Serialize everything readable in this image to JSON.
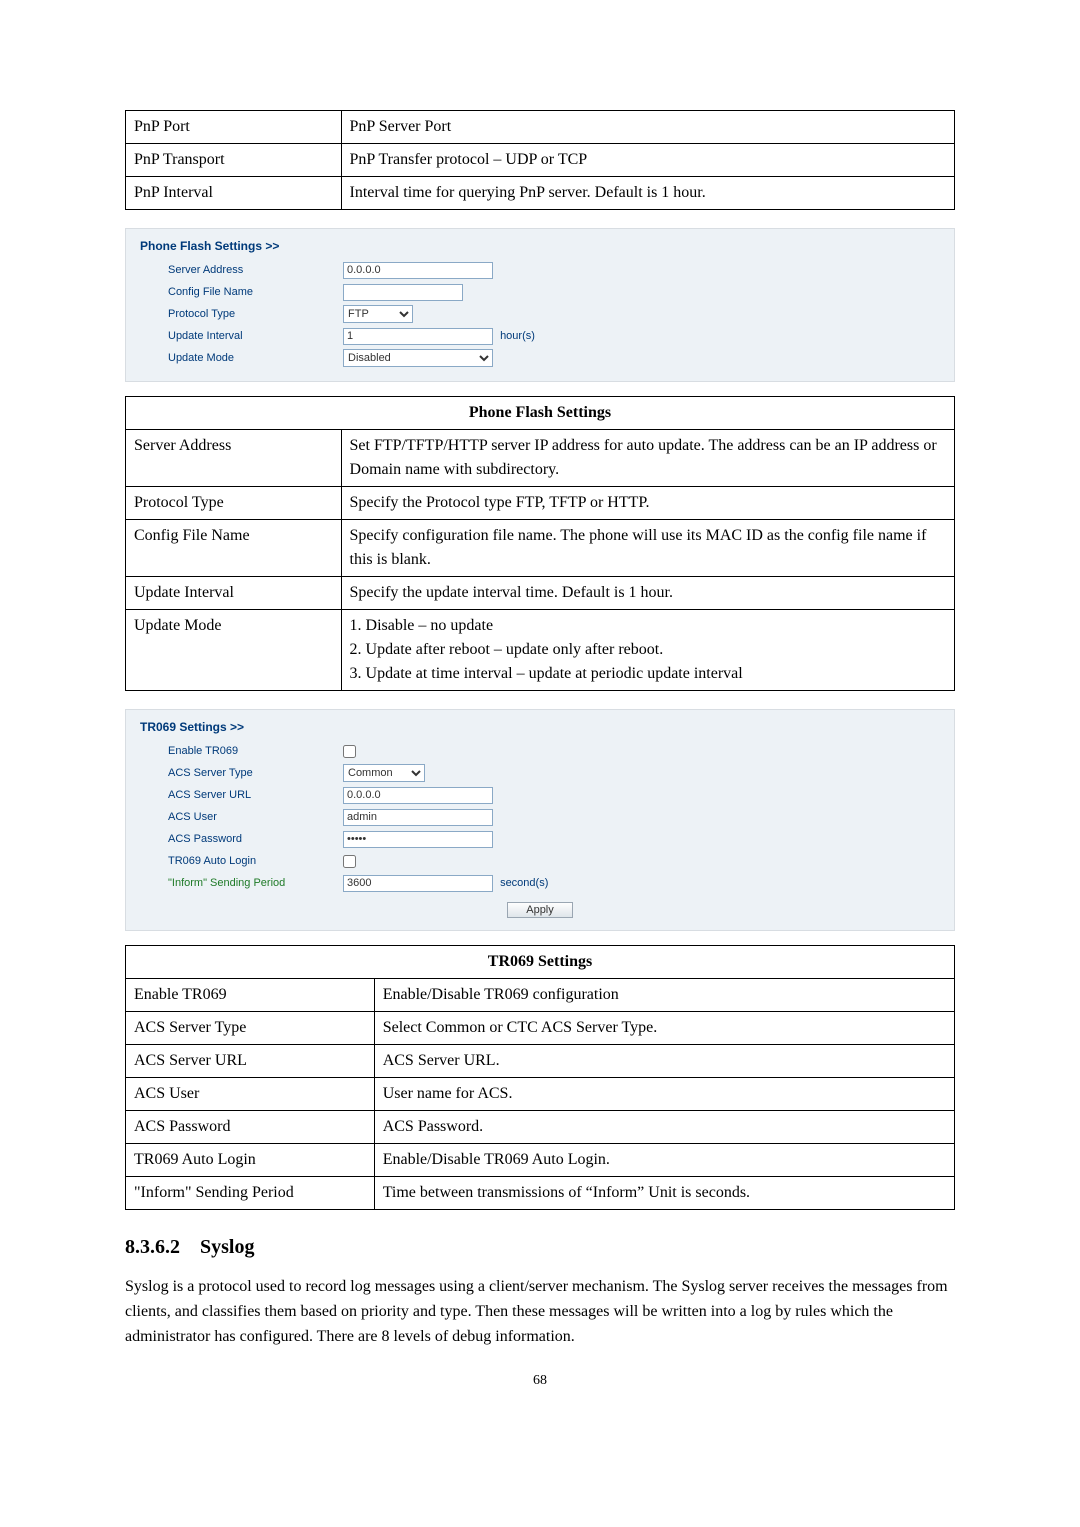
{
  "pnp_table": {
    "rows": [
      {
        "k": "PnP Port",
        "v": "PnP Server Port"
      },
      {
        "k": "PnP Transport",
        "v": "PnP Transfer protocol – UDP or TCP"
      },
      {
        "k": "PnP Interval",
        "v": "Interval time for querying PnP server. Default is 1 hour."
      }
    ]
  },
  "pfs_panel": {
    "title": "Phone Flash Settings >>",
    "server_address_label": "Server Address",
    "server_address_value": "0.0.0.0",
    "config_file_label": "Config File Name",
    "config_file_value": "",
    "protocol_label": "Protocol Type",
    "protocol_options": [
      "FTP"
    ],
    "interval_label": "Update Interval",
    "interval_value": "1",
    "interval_unit": "hour(s)",
    "mode_label": "Update Mode",
    "mode_options": [
      "Disabled"
    ]
  },
  "pfs_table": {
    "header": "Phone Flash Settings",
    "rows": [
      {
        "k": "Server Address",
        "v": "Set FTP/TFTP/HTTP server IP address for auto update. The address can be an IP address or Domain name with subdirectory."
      },
      {
        "k": "Protocol Type",
        "v": "Specify the Protocol type FTP, TFTP or HTTP."
      },
      {
        "k": "Config File Name",
        "v": "Specify configuration file name.    The phone will use its MAC ID as the config file name if this is blank."
      },
      {
        "k": "Update Interval",
        "v": "Specify the update interval time.    Default is 1 hour."
      },
      {
        "k": "Update Mode",
        "v": "1. Disable – no update\n2. Update after reboot – update only after reboot.\n3. Update at time interval – update at periodic update interval"
      }
    ]
  },
  "tr069_panel": {
    "title": "TR069 Settings >>",
    "enable_label": "Enable TR069",
    "acs_type_label": "ACS Server Type",
    "acs_type_options": [
      "Common"
    ],
    "acs_url_label": "ACS Server URL",
    "acs_url_value": "0.0.0.0",
    "acs_user_label": "ACS User",
    "acs_user_value": "admin",
    "acs_pass_label": "ACS Password",
    "acs_pass_value": "•••••",
    "auto_login_label": "TR069 Auto Login",
    "inform_label": "\"Inform\" Sending Period",
    "inform_value": "3600",
    "inform_unit": "second(s)",
    "apply": "Apply"
  },
  "tr069_table": {
    "header": "TR069 Settings",
    "rows": [
      {
        "k": "Enable TR069",
        "v": "Enable/Disable TR069 configuration"
      },
      {
        "k": "ACS Server Type",
        "v": "Select Common or CTC ACS Server Type."
      },
      {
        "k": "ACS Server URL",
        "v": "ACS Server URL."
      },
      {
        "k": "ACS User",
        "v": "User name for ACS."
      },
      {
        "k": "ACS Password",
        "v": "ACS Password."
      },
      {
        "k": "TR069 Auto Login",
        "v": "Enable/Disable TR069 Auto Login."
      },
      {
        "k": "\"Inform\" Sending Period",
        "v": "Time between transmissions of “Inform” Unit is seconds."
      }
    ]
  },
  "section": {
    "number": "8.3.6.2",
    "title": "Syslog",
    "para": "Syslog is a protocol used to record log messages using a client/server mechanism.    The Syslog server receives the messages from clients, and classifies them based on priority and type. Then these messages will be written into a log by rules which the administrator has configured.    There are 8 levels of debug information."
  },
  "page_number": "68"
}
